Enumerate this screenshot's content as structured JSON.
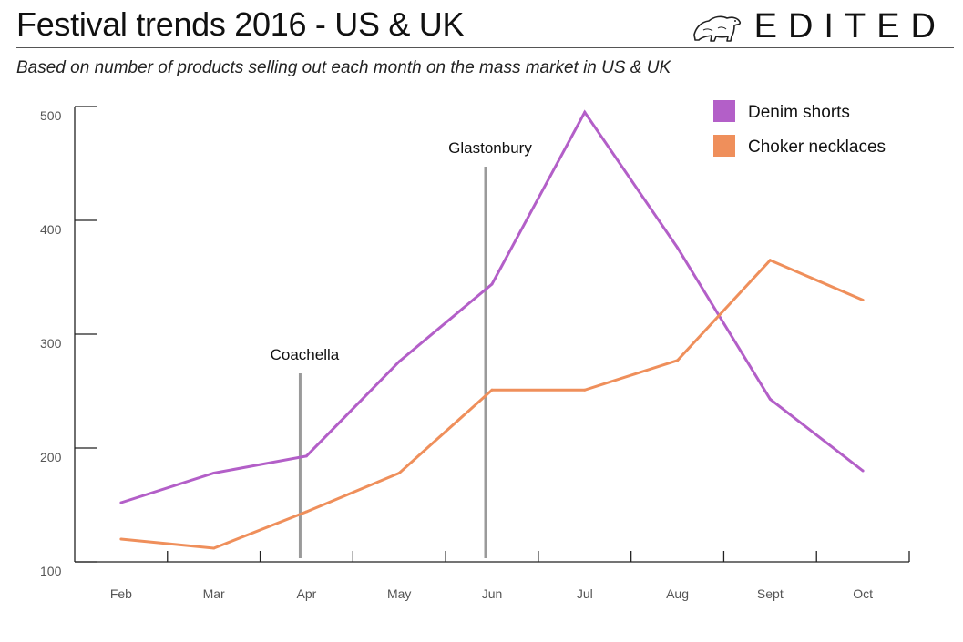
{
  "header": {
    "title": "Festival trends 2016 - US & UK",
    "brand": "EDITED",
    "brand_icon": "polar-bear-logo",
    "subtitle": "Based on number of products selling out each month on the mass market in US & UK"
  },
  "chart_data": {
    "type": "line",
    "title": "Festival trends 2016 - US & UK",
    "subtitle": "Based on number of products selling out each month on the mass market in US & UK",
    "xlabel": "",
    "ylabel": "",
    "categories": [
      "Feb",
      "Mar",
      "Apr",
      "May",
      "Jun",
      "Jul",
      "Aug",
      "Sept",
      "Oct"
    ],
    "ylim": [
      100,
      500
    ],
    "yticks": [
      100,
      200,
      300,
      400,
      500
    ],
    "grid": false,
    "legend_position": "top-right",
    "series": [
      {
        "name": "Denim shorts",
        "color": "#b35fc8",
        "values": [
          152,
          178,
          193,
          276,
          344,
          495,
          376,
          243,
          180
        ]
      },
      {
        "name": "Choker necklaces",
        "color": "#ef8f5b",
        "values": [
          120,
          112,
          144,
          178,
          251,
          251,
          277,
          365,
          330
        ]
      }
    ],
    "annotations": [
      {
        "label": "Coachella",
        "x": "Apr"
      },
      {
        "label": "Glastonbury",
        "x": "Jun"
      }
    ]
  }
}
